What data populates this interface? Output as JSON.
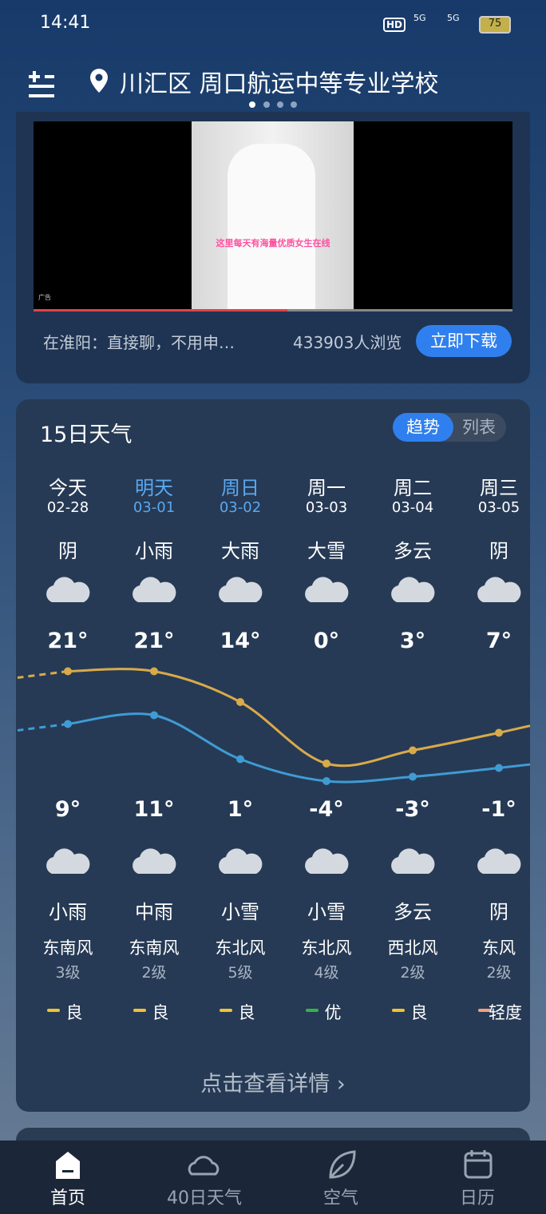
{
  "status": {
    "time": "14:41",
    "battery": "75",
    "hd": "HD",
    "net1": "5G",
    "net2": "5G"
  },
  "header": {
    "location": "川汇区 周口航运中等专业学校"
  },
  "ad": {
    "caption": "这里每天有海量优质女生在线",
    "tag": "广告",
    "text": "在淮阳：直接聊，不用申…",
    "views": "433903人浏览",
    "button": "立即下载"
  },
  "forecast": {
    "title": "15日天气",
    "tabs": [
      "趋势",
      "列表"
    ],
    "days": [
      {
        "name": "今天",
        "date": "02-28",
        "color": "#ffffff",
        "day_weather": "阴",
        "high": {
          "value": 21,
          "label": "21°"
        },
        "low": {
          "value": 9,
          "label": "9°"
        },
        "night_weather": "小雨",
        "wind": "东南风",
        "wind_level": "3级",
        "aqi": "良",
        "aqi_color": "#f2c230"
      },
      {
        "name": "明天",
        "date": "03-01",
        "color": "#5aa8f0",
        "day_weather": "小雨",
        "high": {
          "value": 21,
          "label": "21°"
        },
        "low": {
          "value": 11,
          "label": "11°"
        },
        "night_weather": "中雨",
        "wind": "东南风",
        "wind_level": "2级",
        "aqi": "良",
        "aqi_color": "#f2c230"
      },
      {
        "name": "周日",
        "date": "03-02",
        "color": "#5aa8f0",
        "day_weather": "大雨",
        "high": {
          "value": 14,
          "label": "14°"
        },
        "low": {
          "value": 1,
          "label": "1°"
        },
        "night_weather": "小雪",
        "wind": "东北风",
        "wind_level": "5级",
        "aqi": "良",
        "aqi_color": "#f2c230"
      },
      {
        "name": "周一",
        "date": "03-03",
        "color": "#ffffff",
        "day_weather": "大雪",
        "high": {
          "value": 0,
          "label": "0°"
        },
        "low": {
          "value": -4,
          "label": "-4°"
        },
        "night_weather": "小雪",
        "wind": "东北风",
        "wind_level": "4级",
        "aqi": "优",
        "aqi_color": "#36b24a"
      },
      {
        "name": "周二",
        "date": "03-04",
        "color": "#ffffff",
        "day_weather": "多云",
        "high": {
          "value": 3,
          "label": "3°"
        },
        "low": {
          "value": -3,
          "label": "-3°"
        },
        "night_weather": "多云",
        "wind": "西北风",
        "wind_level": "2级",
        "aqi": "良",
        "aqi_color": "#f2c230"
      },
      {
        "name": "周三",
        "date": "03-05",
        "color": "#ffffff",
        "day_weather": "阴",
        "high": {
          "value": 7,
          "label": "7°"
        },
        "low": {
          "value": -1,
          "label": "-1°"
        },
        "night_weather": "阴",
        "wind": "东风",
        "wind_level": "2级",
        "aqi": "轻度",
        "aqi_color": "#f4a07c"
      }
    ],
    "high_color": "#d9aa4a",
    "low_color": "#3f9bd4",
    "details": "点击查看详情 ›"
  },
  "nav": [
    "首页",
    "40日天气",
    "空气",
    "日历"
  ]
}
